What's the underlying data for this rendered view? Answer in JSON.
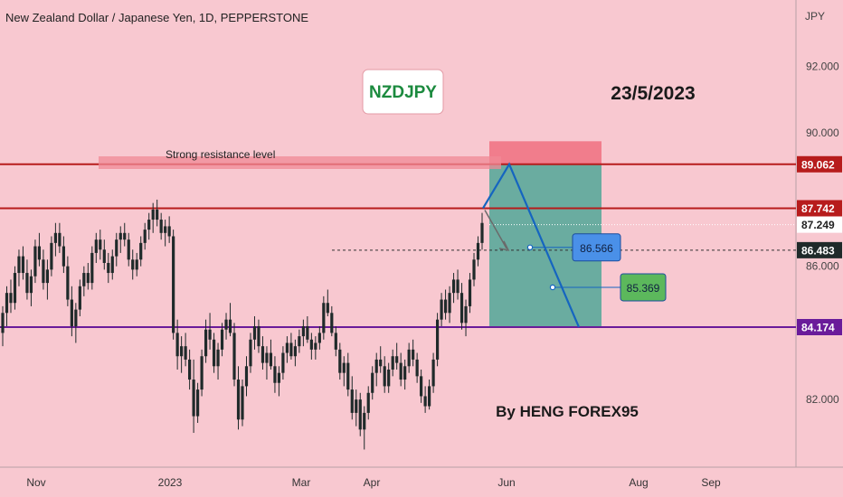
{
  "header": {
    "title": "New Zealand Dollar / Japanese Yen, 1D, PEPPERSTONE"
  },
  "annotations": {
    "symbol_label": "NZDJPY",
    "date_label": "23/5/2023",
    "author_label": "By HENG FOREX95",
    "resistance_label": "Strong resistance level"
  },
  "colors": {
    "background": "#f8c8d0",
    "resistance_line": "#b71c1c",
    "support_line": "#6a1b9a",
    "profit_zone": "#5aa89a",
    "stop_zone": "#f07080",
    "projection_line": "#1565c0",
    "candle": "#1f2a2a"
  },
  "chart_data": {
    "type": "candlestick",
    "title": "New Zealand Dollar / Japanese Yen, 1D, PEPPERSTONE",
    "y_axis_unit": "JPY",
    "ylim": [
      80.0,
      93.5
    ],
    "y_ticks": [
      82.0,
      84.0,
      86.0,
      88.0,
      90.0,
      92.0
    ],
    "y_tick_labels": [
      "82.000",
      "",
      "86.000",
      "",
      "90.000",
      "92.000"
    ],
    "x_tick_labels": [
      "Nov",
      "2023",
      "Mar",
      "Apr",
      "Jun",
      "Aug",
      "Sep"
    ],
    "price_levels": [
      {
        "name": "resistance-high",
        "value": 89.062,
        "label": "89.062"
      },
      {
        "name": "resistance-mid",
        "value": 87.742,
        "label": "87.742"
      },
      {
        "name": "last-price",
        "value": 87.249,
        "label": "87.249"
      },
      {
        "name": "current-price",
        "value": 86.483,
        "label": "86.483"
      },
      {
        "name": "support",
        "value": 84.174,
        "label": "84.174"
      }
    ],
    "targets": [
      {
        "name": "target-1",
        "value": 86.566,
        "label": "86.566"
      },
      {
        "name": "target-2",
        "value": 85.369,
        "label": "85.369"
      }
    ],
    "position_zone": {
      "entry": 89.062,
      "stop": 89.4,
      "target": 84.174
    },
    "projection_path": [
      87.742,
      89.062,
      84.174
    ],
    "grid": false,
    "series": [
      {
        "type": "ohlc",
        "points": [
          [
            84.0,
            84.8,
            83.6,
            84.6
          ],
          [
            84.6,
            85.4,
            84.2,
            85.2
          ],
          [
            85.2,
            85.6,
            84.6,
            84.9
          ],
          [
            84.9,
            86.0,
            84.7,
            85.8
          ],
          [
            85.8,
            86.5,
            85.4,
            86.3
          ],
          [
            86.3,
            86.6,
            85.6,
            85.8
          ],
          [
            85.8,
            86.2,
            85.0,
            85.2
          ],
          [
            85.2,
            85.9,
            84.8,
            85.7
          ],
          [
            85.7,
            86.8,
            85.5,
            86.6
          ],
          [
            86.6,
            87.0,
            86.0,
            86.2
          ],
          [
            86.2,
            86.5,
            85.3,
            85.5
          ],
          [
            85.5,
            86.2,
            85.0,
            85.9
          ],
          [
            85.9,
            86.9,
            85.7,
            86.7
          ],
          [
            86.7,
            87.3,
            86.3,
            87.0
          ],
          [
            87.0,
            87.3,
            86.4,
            86.6
          ],
          [
            86.6,
            86.9,
            85.8,
            86.0
          ],
          [
            86.0,
            86.3,
            84.8,
            85.0
          ],
          [
            85.0,
            85.4,
            83.9,
            84.2
          ],
          [
            84.2,
            84.9,
            83.7,
            84.7
          ],
          [
            84.7,
            85.6,
            84.5,
            85.4
          ],
          [
            85.4,
            86.0,
            85.1,
            85.8
          ],
          [
            85.8,
            86.1,
            85.3,
            85.5
          ],
          [
            85.5,
            86.6,
            85.3,
            86.4
          ],
          [
            86.4,
            87.0,
            86.1,
            86.8
          ],
          [
            86.8,
            87.1,
            86.2,
            86.5
          ],
          [
            86.5,
            86.8,
            85.9,
            86.1
          ],
          [
            86.1,
            86.4,
            85.5,
            85.8
          ],
          [
            85.8,
            86.5,
            85.6,
            86.3
          ],
          [
            86.3,
            87.0,
            86.0,
            86.8
          ],
          [
            86.8,
            87.2,
            86.4,
            87.0
          ],
          [
            87.0,
            87.3,
            86.6,
            86.8
          ],
          [
            86.8,
            87.0,
            86.0,
            86.2
          ],
          [
            86.2,
            86.5,
            85.6,
            85.9
          ],
          [
            85.9,
            86.4,
            85.7,
            86.2
          ],
          [
            86.2,
            86.9,
            86.0,
            86.7
          ],
          [
            86.7,
            87.3,
            86.5,
            87.1
          ],
          [
            87.1,
            87.6,
            86.8,
            87.4
          ],
          [
            87.4,
            87.9,
            87.0,
            87.7
          ],
          [
            87.7,
            88.0,
            87.2,
            87.4
          ],
          [
            87.4,
            87.6,
            86.8,
            87.0
          ],
          [
            87.0,
            87.4,
            86.6,
            87.2
          ],
          [
            87.2,
            87.5,
            86.7,
            86.9
          ],
          [
            86.9,
            87.1,
            83.8,
            84.0
          ],
          [
            84.0,
            84.4,
            82.9,
            83.3
          ],
          [
            83.3,
            83.9,
            82.8,
            83.6
          ],
          [
            83.6,
            84.0,
            83.0,
            83.2
          ],
          [
            83.2,
            83.5,
            82.3,
            82.6
          ],
          [
            82.6,
            83.2,
            81.0,
            81.5
          ],
          [
            81.5,
            82.5,
            81.3,
            82.3
          ],
          [
            82.3,
            83.5,
            82.1,
            83.3
          ],
          [
            83.3,
            84.4,
            83.1,
            84.1
          ],
          [
            84.1,
            84.6,
            83.5,
            83.8
          ],
          [
            83.8,
            84.0,
            82.8,
            83.0
          ],
          [
            83.0,
            83.7,
            82.6,
            83.5
          ],
          [
            83.5,
            84.3,
            83.3,
            84.1
          ],
          [
            84.1,
            84.6,
            83.8,
            84.4
          ],
          [
            84.4,
            84.9,
            83.9,
            84.0
          ],
          [
            84.0,
            84.3,
            82.4,
            82.6
          ],
          [
            82.6,
            83.0,
            81.1,
            81.4
          ],
          [
            81.4,
            82.6,
            81.2,
            82.4
          ],
          [
            82.4,
            83.3,
            82.1,
            83.0
          ],
          [
            83.0,
            84.0,
            82.8,
            83.8
          ],
          [
            83.8,
            84.5,
            83.5,
            84.2
          ],
          [
            84.2,
            84.4,
            83.4,
            83.6
          ],
          [
            83.6,
            83.9,
            82.9,
            83.1
          ],
          [
            83.1,
            83.6,
            82.6,
            83.4
          ],
          [
            83.4,
            83.8,
            82.9,
            83.0
          ],
          [
            83.0,
            83.3,
            82.2,
            82.5
          ],
          [
            82.5,
            83.0,
            82.1,
            82.8
          ],
          [
            82.8,
            83.6,
            82.6,
            83.4
          ],
          [
            83.4,
            83.9,
            83.1,
            83.7
          ],
          [
            83.7,
            84.0,
            83.2,
            83.3
          ],
          [
            83.3,
            83.8,
            83.0,
            83.6
          ],
          [
            83.6,
            84.1,
            83.4,
            83.9
          ],
          [
            83.9,
            84.4,
            83.6,
            84.2
          ],
          [
            84.2,
            84.5,
            83.7,
            83.8
          ],
          [
            83.8,
            84.0,
            83.2,
            83.5
          ],
          [
            83.5,
            83.9,
            83.2,
            83.7
          ],
          [
            83.7,
            84.2,
            83.5,
            84.0
          ],
          [
            84.0,
            85.1,
            83.8,
            84.9
          ],
          [
            84.9,
            85.3,
            84.5,
            84.6
          ],
          [
            84.6,
            84.8,
            83.9,
            84.0
          ],
          [
            84.0,
            84.2,
            83.3,
            83.5
          ],
          [
            83.5,
            83.7,
            82.6,
            82.8
          ],
          [
            82.8,
            83.3,
            82.4,
            83.1
          ],
          [
            83.1,
            83.4,
            82.1,
            82.3
          ],
          [
            82.3,
            82.7,
            81.4,
            81.6
          ],
          [
            81.6,
            82.3,
            81.2,
            82.0
          ],
          [
            82.0,
            82.2,
            80.9,
            81.1
          ],
          [
            81.1,
            81.8,
            80.5,
            81.6
          ],
          [
            81.6,
            82.4,
            81.4,
            82.2
          ],
          [
            82.2,
            83.0,
            82.0,
            82.8
          ],
          [
            82.8,
            83.4,
            82.4,
            83.2
          ],
          [
            83.2,
            83.6,
            82.8,
            83.0
          ],
          [
            83.0,
            83.3,
            82.2,
            82.4
          ],
          [
            82.4,
            83.1,
            82.2,
            82.9
          ],
          [
            82.9,
            83.5,
            82.7,
            83.3
          ],
          [
            83.3,
            83.7,
            82.9,
            83.1
          ],
          [
            83.1,
            83.4,
            82.4,
            82.6
          ],
          [
            82.6,
            83.2,
            82.3,
            83.0
          ],
          [
            83.0,
            83.7,
            82.8,
            83.5
          ],
          [
            83.5,
            83.8,
            83.0,
            83.2
          ],
          [
            83.2,
            83.4,
            82.5,
            82.7
          ],
          [
            82.7,
            82.9,
            81.9,
            82.1
          ],
          [
            82.1,
            82.4,
            81.6,
            81.8
          ],
          [
            81.8,
            82.6,
            81.7,
            82.4
          ],
          [
            82.4,
            83.4,
            82.2,
            83.2
          ],
          [
            83.2,
            84.6,
            83.0,
            84.4
          ],
          [
            84.4,
            85.2,
            84.2,
            85.0
          ],
          [
            85.0,
            85.3,
            84.4,
            84.6
          ],
          [
            84.6,
            85.4,
            84.3,
            85.2
          ],
          [
            85.2,
            85.8,
            84.9,
            85.6
          ],
          [
            85.6,
            85.9,
            85.0,
            85.2
          ],
          [
            85.2,
            85.5,
            84.1,
            84.3
          ],
          [
            84.3,
            85.0,
            83.9,
            84.8
          ],
          [
            84.8,
            85.8,
            84.6,
            85.6
          ],
          [
            85.6,
            86.4,
            85.4,
            86.2
          ],
          [
            86.2,
            86.9,
            86.0,
            86.7
          ],
          [
            86.7,
            87.6,
            86.5,
            87.3
          ]
        ]
      }
    ]
  },
  "axis": {
    "unit_label": "JPY"
  }
}
